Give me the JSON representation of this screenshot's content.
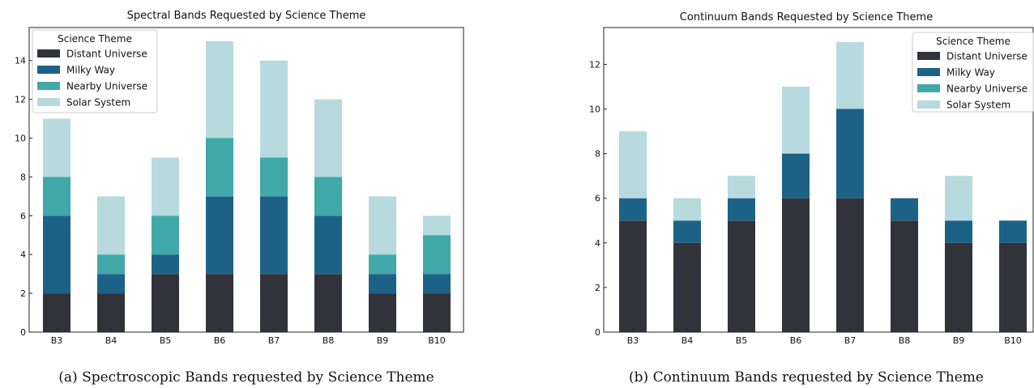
{
  "chart_data": [
    {
      "type": "bar",
      "stacked": true,
      "title": "Spectral Bands Requested by Science Theme",
      "categories": [
        "B3",
        "B4",
        "B5",
        "B6",
        "B7",
        "B8",
        "B9",
        "B10"
      ],
      "series": [
        {
          "name": "Distant Universe",
          "color": "#32333a",
          "values": [
            2,
            2,
            3,
            3,
            3,
            3,
            2,
            2
          ]
        },
        {
          "name": "Milky Way",
          "color": "#1c6287",
          "values": [
            4,
            1,
            1,
            4,
            4,
            3,
            1,
            1
          ]
        },
        {
          "name": "Nearby Universe",
          "color": "#40a8a8",
          "values": [
            2,
            1,
            2,
            3,
            2,
            2,
            1,
            2
          ]
        },
        {
          "name": "Solar System",
          "color": "#b6dadd",
          "values": [
            3,
            3,
            3,
            5,
            5,
            4,
            3,
            1
          ]
        }
      ],
      "ylim": [
        0,
        15.7
      ],
      "yticks": [
        0,
        2,
        4,
        6,
        8,
        10,
        12,
        14
      ],
      "legend_title": "Science Theme",
      "legend_position": "top-left",
      "caption": "(a) Spectroscopic Bands requested by Science Theme"
    },
    {
      "type": "bar",
      "stacked": true,
      "title": "Continuum Bands Requested by Science Theme",
      "categories": [
        "B3",
        "B4",
        "B5",
        "B6",
        "B7",
        "B8",
        "B9",
        "B10"
      ],
      "series": [
        {
          "name": "Distant Universe",
          "color": "#32333a",
          "values": [
            5,
            4,
            5,
            6,
            6,
            5,
            4,
            4
          ]
        },
        {
          "name": "Milky Way",
          "color": "#1c6287",
          "values": [
            1,
            1,
            1,
            2,
            4,
            1,
            1,
            1
          ]
        },
        {
          "name": "Nearby Universe",
          "color": "#40a8a8",
          "values": [
            0,
            0,
            0,
            0,
            0,
            0,
            0,
            0
          ]
        },
        {
          "name": "Solar System",
          "color": "#b6dadd",
          "values": [
            3,
            1,
            1,
            3,
            3,
            0,
            2,
            0
          ]
        }
      ],
      "ylim": [
        0,
        13.65
      ],
      "yticks": [
        0,
        2,
        4,
        6,
        8,
        10,
        12
      ],
      "legend_title": "Science Theme",
      "legend_position": "top-right",
      "caption": "(b) Continuum Bands requested by Science Theme"
    }
  ]
}
